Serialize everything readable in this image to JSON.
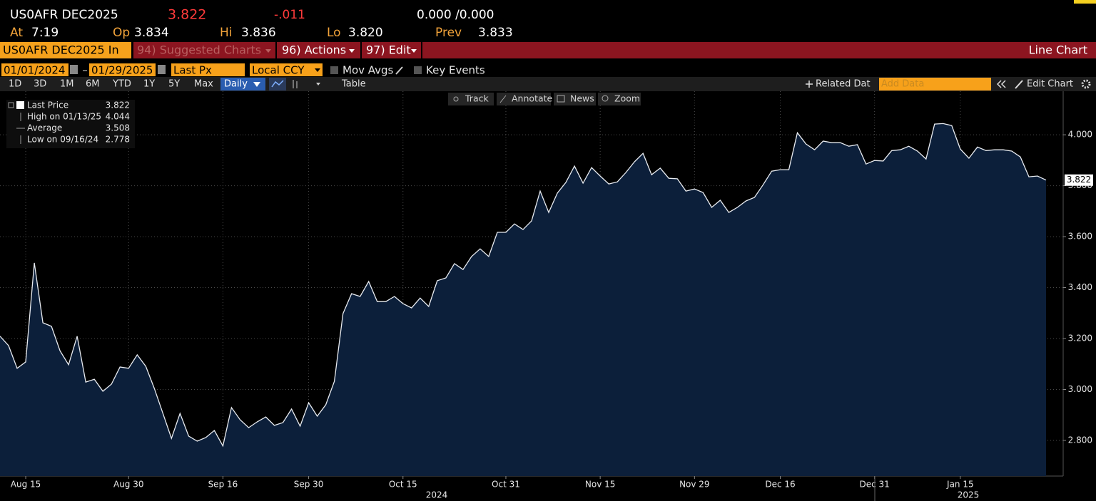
{
  "header": {
    "ticker": "US0AFR DEC2025",
    "price": "3.822",
    "change": "-.011",
    "bid_ask": "0.000 /0.000",
    "at_label": "At",
    "at": "7:19",
    "op_label": "Op",
    "op": "3.834",
    "hi_label": "Hi",
    "hi": "3.836",
    "lo_label": "Lo",
    "lo": "3.820",
    "prev_label": "Prev",
    "prev": "3.833"
  },
  "menu": {
    "security": "US0AFR DEC2025 In",
    "suggested": "94) Suggested Charts",
    "actions": "96) Actions",
    "edit": "97) Edit",
    "view": "Line Chart"
  },
  "controls": {
    "start": "01/01/2024",
    "end": "01/29/2025",
    "field": "Last Px",
    "currency": "Local CCY",
    "mov_avgs": "Mov Avgs",
    "key_events": "Key Events"
  },
  "toolbar": {
    "periods": [
      "1D",
      "3D",
      "1M",
      "6M",
      "YTD",
      "1Y",
      "5Y",
      "Max"
    ],
    "frequency": "Daily",
    "table": "Table",
    "related": "Related Dat",
    "add_data": "Add Data",
    "edit_chart": "Edit Chart"
  },
  "chart_tools": [
    "Track",
    "Annotate",
    "News",
    "Zoom"
  ],
  "legend": [
    {
      "label": "Last Price",
      "value": "3.822"
    },
    {
      "label": "High on 01/13/25",
      "value": "4.044"
    },
    {
      "label": "Average",
      "value": "3.508"
    },
    {
      "label": "Low on 09/16/24",
      "value": "2.778"
    }
  ],
  "chart_data": {
    "type": "area",
    "color": "#e8ebf0",
    "area_color": "#0c1f3a",
    "grid": true,
    "categories": [
      null,
      null,
      null,
      "Aug 15",
      null,
      null,
      null,
      null,
      null,
      null,
      null,
      null,
      null,
      null,
      null,
      "Aug 30",
      null,
      null,
      null,
      null,
      null,
      null,
      null,
      null,
      null,
      null,
      "Sep 16",
      null,
      null,
      null,
      null,
      null,
      null,
      null,
      null,
      null,
      "Sep 30",
      null,
      null,
      null,
      null,
      null,
      null,
      null,
      null,
      null,
      null,
      "Oct 15",
      null,
      null,
      null,
      null,
      null,
      null,
      null,
      null,
      null,
      null,
      null,
      "Oct 31",
      null,
      null,
      null,
      null,
      null,
      null,
      null,
      null,
      null,
      null,
      "Nov 15",
      null,
      null,
      null,
      null,
      null,
      null,
      null,
      null,
      null,
      null,
      "Nov 29",
      null,
      null,
      null,
      null,
      null,
      null,
      null,
      null,
      null,
      "Dec 16",
      null,
      null,
      null,
      null,
      null,
      null,
      null,
      null,
      null,
      null,
      "Dec 31",
      null,
      null,
      null,
      null,
      null,
      null,
      null,
      null,
      null,
      "Jan 15",
      null,
      null,
      null,
      null,
      null,
      null,
      null,
      null,
      null,
      null
    ],
    "values": [
      3.209,
      3.172,
      3.083,
      3.108,
      3.497,
      3.262,
      3.248,
      3.152,
      3.097,
      3.209,
      3.029,
      3.04,
      2.993,
      3.021,
      3.088,
      3.083,
      3.136,
      3.091,
      3.004,
      2.906,
      2.808,
      2.906,
      2.817,
      2.797,
      2.811,
      2.839,
      2.778,
      2.929,
      2.881,
      2.85,
      2.873,
      2.892,
      2.859,
      2.87,
      2.923,
      2.856,
      2.948,
      2.895,
      2.94,
      3.032,
      3.298,
      3.376,
      3.365,
      3.424,
      3.345,
      3.345,
      3.365,
      3.337,
      3.32,
      3.359,
      3.326,
      3.427,
      3.438,
      3.494,
      3.471,
      3.522,
      3.552,
      3.522,
      3.617,
      3.617,
      3.65,
      3.628,
      3.662,
      3.779,
      3.695,
      3.771,
      3.813,
      3.877,
      3.81,
      3.871,
      3.838,
      3.807,
      3.815,
      3.852,
      3.894,
      3.927,
      3.843,
      3.869,
      3.829,
      3.827,
      3.779,
      3.787,
      3.773,
      3.715,
      3.743,
      3.695,
      3.715,
      3.74,
      3.754,
      3.804,
      3.857,
      3.863,
      3.863,
      4.008,
      3.964,
      3.941,
      3.975,
      3.969,
      3.969,
      3.955,
      3.961,
      3.885,
      3.899,
      3.897,
      3.938,
      3.941,
      3.955,
      3.936,
      3.905,
      4.042,
      4.044,
      4.036,
      3.944,
      3.908,
      3.952,
      3.938,
      3.941,
      3.941,
      3.936,
      3.913,
      3.835,
      3.838,
      3.822
    ],
    "x_groups": [
      "2024",
      "2025"
    ],
    "ylim": [
      2.66,
      4.171
    ],
    "yticks": [
      {
        "value": 2.8,
        "label": "2.800"
      },
      {
        "value": 3.0,
        "label": "3.000"
      },
      {
        "value": 3.2,
        "label": "3.200"
      },
      {
        "value": 3.4,
        "label": "3.400"
      },
      {
        "value": 3.6,
        "label": "3.600"
      },
      {
        "value": 3.8,
        "label": "3.800"
      },
      {
        "value": 4.0,
        "label": "4.000"
      }
    ]
  }
}
